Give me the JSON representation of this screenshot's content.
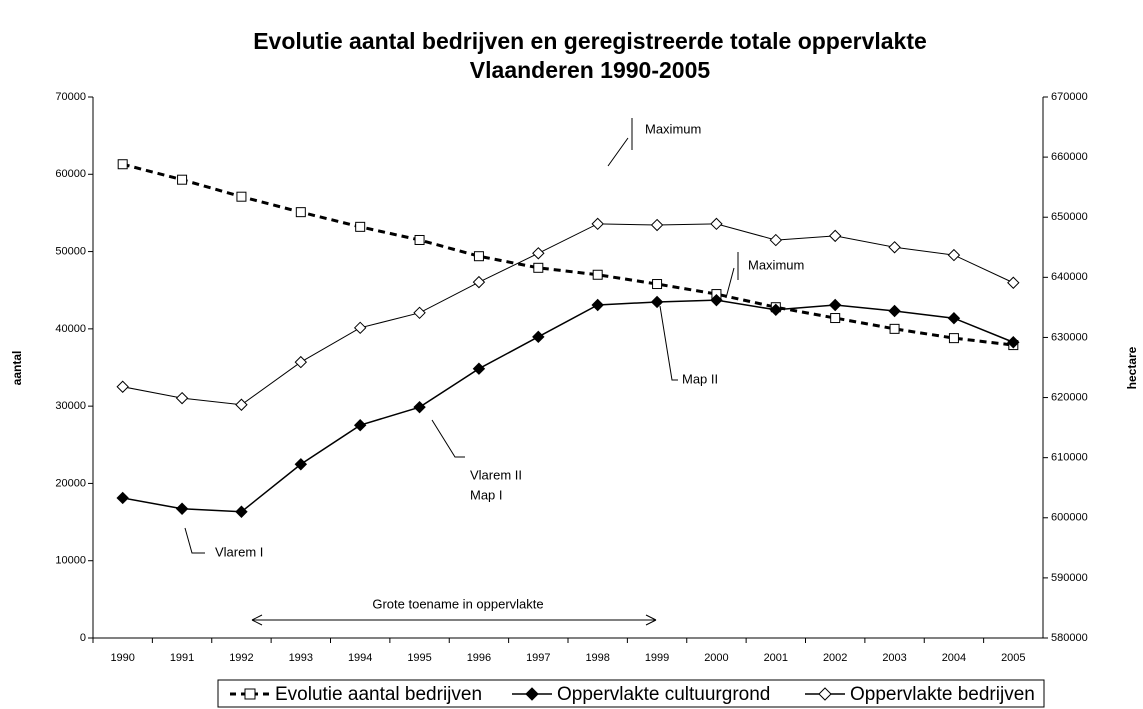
{
  "chart_data": {
    "type": "line",
    "title": "Evolutie aantal bedrijven en geregistreerde totale oppervlakte",
    "subtitle": "Vlaanderen 1990-2005",
    "y_label": "aantal",
    "y2_label": "hectare",
    "categories": [
      "1990",
      "1991",
      "1992",
      "1993",
      "1994",
      "1995",
      "1996",
      "1997",
      "1998",
      "1999",
      "2000",
      "2001",
      "2002",
      "2003",
      "2004",
      "2005"
    ],
    "series": [
      {
        "name": "Evolutie aantal bedrijven",
        "color": "#000000",
        "marker": "square",
        "filled": false,
        "line_style": "dashed",
        "axis": "y",
        "values": [
          61300,
          59300,
          57100,
          55100,
          53200,
          51500,
          49400,
          47900,
          47000,
          45800,
          44500,
          42800,
          41400,
          40000,
          38800,
          37900
        ]
      },
      {
        "name": "Oppervlakte cultuurgrond",
        "color": "#000000",
        "marker": "diamond",
        "filled": true,
        "line_style": "solid",
        "axis": "y2",
        "values": [
          603300,
          601500,
          601000,
          608900,
          615400,
          618400,
          624800,
          630100,
          635400,
          635900,
          636200,
          634600,
          635400,
          634400,
          633200,
          629200
        ]
      },
      {
        "name": "Oppervlakte bedrijven",
        "color": "#000000",
        "marker": "diamond",
        "filled": false,
        "line_style": "solid",
        "axis": "y2",
        "values": [
          621800,
          619900,
          618800,
          625900,
          631600,
          634100,
          639200,
          644000,
          648900,
          648700,
          648900,
          646200,
          646900,
          645000,
          643700,
          639100
        ]
      }
    ],
    "ylim": [
      0,
      70000
    ],
    "yticks": [
      0,
      10000,
      20000,
      30000,
      40000,
      50000,
      60000,
      70000
    ],
    "y2lim": [
      580000,
      670000
    ],
    "y2ticks": [
      580000,
      590000,
      600000,
      610000,
      620000,
      630000,
      640000,
      650000,
      660000,
      670000
    ],
    "annotations": [
      "Maximum",
      "Maximum",
      "Map II",
      "Vlarem II",
      "Map I",
      "Vlarem I",
      "Grote toename in oppervlakte"
    ],
    "legend": "bottom",
    "grid": false
  }
}
